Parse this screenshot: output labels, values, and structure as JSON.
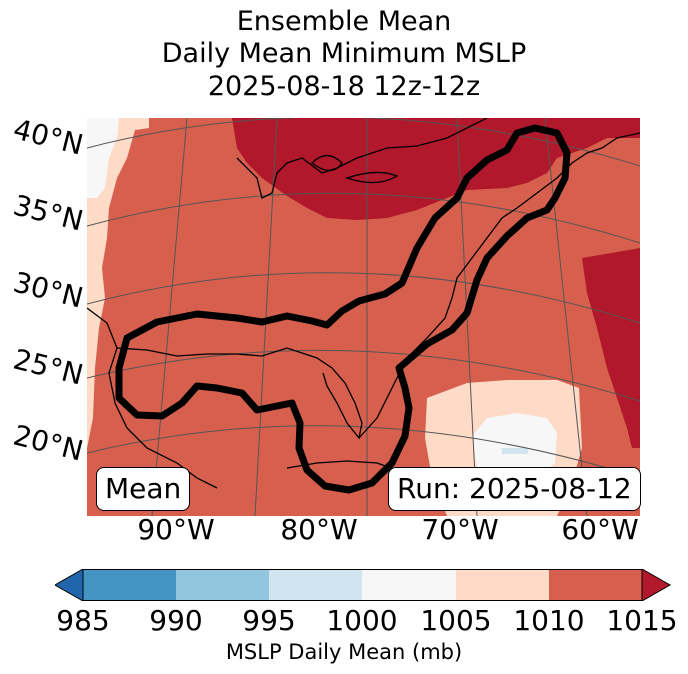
{
  "title": {
    "line1": "Ensemble Mean",
    "line2": "Daily Mean Minimum MSLP",
    "line3": "2025-08-18 12z-12z"
  },
  "map": {
    "lat_labels": [
      "40°N",
      "35°N",
      "30°N",
      "25°N",
      "20°N"
    ],
    "lon_labels": [
      "90°W",
      "80°W",
      "70°W",
      "60°W"
    ],
    "mean_box": "Mean",
    "run_box": "Run: 2025-08-12",
    "colors": {
      "c985": "#2166ac",
      "c990": "#4393c3",
      "c995": "#92c5de",
      "c1000": "#d1e5f0",
      "c1005": "#f7f7f7",
      "c1010": "#fddbc7",
      "c1015": "#d6604d",
      "cmax": "#b2182b",
      "contour": "#000000"
    }
  },
  "colorbar": {
    "ticks": [
      "985",
      "990",
      "995",
      "1000",
      "1005",
      "1010",
      "1015"
    ],
    "label": "MSLP Daily Mean (mb)",
    "colors": [
      "#2166ac",
      "#4393c3",
      "#92c5de",
      "#d1e5f0",
      "#f7f7f7",
      "#fddbc7",
      "#d6604d",
      "#b2182b"
    ]
  }
}
